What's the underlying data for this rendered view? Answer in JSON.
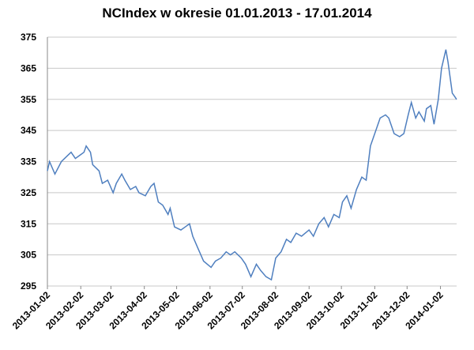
{
  "chart_data": {
    "type": "line",
    "title": "NCIndex w okresie 01.01.2013 - 17.01.2014",
    "x": [
      "2013-01-02",
      "2013-01-04",
      "2013-01-09",
      "2013-01-15",
      "2013-01-21",
      "2013-01-24",
      "2013-01-28",
      "2013-02-01",
      "2013-02-05",
      "2013-02-07",
      "2013-02-11",
      "2013-02-13",
      "2013-02-19",
      "2013-02-22",
      "2013-02-27",
      "2013-03-04",
      "2013-03-07",
      "2013-03-12",
      "2013-03-15",
      "2013-03-20",
      "2013-03-25",
      "2013-03-28",
      "2013-04-03",
      "2013-04-08",
      "2013-04-11",
      "2013-04-15",
      "2013-04-19",
      "2013-04-24",
      "2013-04-26",
      "2013-04-30",
      "2013-05-06",
      "2013-05-10",
      "2013-05-14",
      "2013-05-17",
      "2013-05-22",
      "2013-05-27",
      "2013-06-03",
      "2013-06-07",
      "2013-06-12",
      "2013-06-17",
      "2013-06-21",
      "2013-06-25",
      "2013-07-01",
      "2013-07-05",
      "2013-07-10",
      "2013-07-15",
      "2013-07-19",
      "2013-07-24",
      "2013-07-29",
      "2013-08-02",
      "2013-08-07",
      "2013-08-12",
      "2013-08-16",
      "2013-08-21",
      "2013-08-26",
      "2013-09-02",
      "2013-09-06",
      "2013-09-11",
      "2013-09-16",
      "2013-09-20",
      "2013-09-25",
      "2013-09-30",
      "2013-10-03",
      "2013-10-07",
      "2013-10-11",
      "2013-10-16",
      "2013-10-21",
      "2013-10-25",
      "2013-10-29",
      "2013-11-04",
      "2013-11-07",
      "2013-11-12",
      "2013-11-15",
      "2013-11-20",
      "2013-11-25",
      "2013-11-29",
      "2013-12-03",
      "2013-12-06",
      "2013-12-10",
      "2013-12-13",
      "2013-12-18",
      "2013-12-20",
      "2013-12-24",
      "2013-12-27",
      "2013-12-31",
      "2014-01-03",
      "2014-01-07",
      "2014-01-09",
      "2014-01-13",
      "2014-01-15",
      "2014-01-17"
    ],
    "series": [
      {
        "name": "NCIndex",
        "color": "#4f7fbf",
        "values": [
          332,
          335,
          331,
          335,
          337,
          338,
          336,
          337,
          338,
          340,
          338,
          334,
          332,
          328,
          329,
          325,
          328,
          331,
          329,
          326,
          327,
          325,
          324,
          327,
          328,
          322,
          321,
          318,
          320,
          314,
          313,
          314,
          315,
          311,
          307,
          303,
          301,
          303,
          304,
          306,
          305,
          306,
          304,
          302,
          298,
          302,
          300,
          298,
          297,
          304,
          306,
          310,
          309,
          312,
          311,
          313,
          311,
          315,
          317,
          314,
          318,
          317,
          322,
          324,
          320,
          326,
          330,
          329,
          340,
          346,
          349,
          350,
          349,
          344,
          343,
          344,
          350,
          354,
          349,
          351,
          348,
          352,
          353,
          347,
          355,
          365,
          371,
          367,
          357,
          356,
          355
        ]
      }
    ],
    "xlim": [
      "2013-01-02",
      "2014-01-17"
    ],
    "xticks": [
      "2013-01-02",
      "2013-02-02",
      "2013-03-02",
      "2013-04-02",
      "2013-05-02",
      "2013-06-02",
      "2013-07-02",
      "2013-08-02",
      "2013-09-02",
      "2013-10-02",
      "2013-11-02",
      "2013-12-02",
      "2014-01-02"
    ],
    "ylim": [
      295,
      375
    ],
    "yticks": [
      295,
      305,
      315,
      325,
      335,
      345,
      355,
      365,
      375
    ],
    "grid": true
  }
}
